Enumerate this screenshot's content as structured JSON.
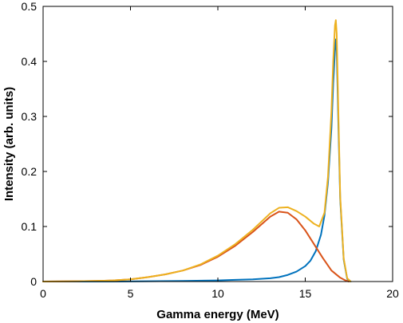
{
  "chart_data": {
    "type": "line",
    "title": "",
    "xlabel": "Gamma energy (MeV)",
    "ylabel": "Intensity (arb. units)",
    "xlim": [
      0,
      20
    ],
    "ylim": [
      0,
      0.5
    ],
    "x_ticks": [
      0,
      5,
      10,
      15,
      20
    ],
    "x_tick_labels": [
      "0",
      "5",
      "10",
      "15",
      "20"
    ],
    "y_ticks": [
      0,
      0.1,
      0.2,
      0.3,
      0.4,
      0.5
    ],
    "y_tick_labels": [
      "0",
      "0.1",
      "0.2",
      "0.3",
      "0.4",
      "0.5"
    ],
    "grid": false,
    "legend": "none",
    "series": [
      {
        "color": "#0072BD",
        "x": [
          0,
          2,
          4,
          6,
          8,
          10,
          11,
          12,
          13,
          13.5,
          14,
          14.5,
          15,
          15.3,
          15.6,
          15.9,
          16.1,
          16.3,
          16.5,
          16.6,
          16.7,
          16.75,
          16.8,
          16.9,
          17.0,
          17.2,
          17.4,
          17.6
        ],
        "y": [
          0,
          0,
          0,
          0.0005,
          0.001,
          0.002,
          0.003,
          0.004,
          0.006,
          0.008,
          0.012,
          0.018,
          0.028,
          0.038,
          0.055,
          0.085,
          0.12,
          0.18,
          0.28,
          0.36,
          0.42,
          0.44,
          0.42,
          0.28,
          0.15,
          0.04,
          0.005,
          0
        ]
      },
      {
        "color": "#D95319",
        "x": [
          0,
          2,
          3,
          4,
          5,
          6,
          7,
          8,
          9,
          10,
          11,
          12,
          13,
          13.5,
          14,
          14.5,
          15,
          15.5,
          16,
          16.5,
          17,
          17.3,
          17.5
        ],
        "y": [
          0,
          0.0005,
          0.001,
          0.002,
          0.004,
          0.008,
          0.013,
          0.02,
          0.03,
          0.045,
          0.065,
          0.09,
          0.118,
          0.127,
          0.125,
          0.113,
          0.093,
          0.068,
          0.043,
          0.02,
          0.007,
          0.002,
          0
        ]
      },
      {
        "color": "#EDB120",
        "x": [
          0,
          2,
          3,
          4,
          5,
          6,
          7,
          8,
          9,
          10,
          11,
          12,
          13,
          13.5,
          14,
          14.5,
          15,
          15.5,
          15.8,
          16.1,
          16.3,
          16.5,
          16.6,
          16.7,
          16.75,
          16.8,
          16.9,
          17.0,
          17.2,
          17.4,
          17.6
        ],
        "y": [
          0,
          0.0005,
          0.001,
          0.002,
          0.004,
          0.008,
          0.013,
          0.02,
          0.031,
          0.047,
          0.068,
          0.094,
          0.124,
          0.134,
          0.135,
          0.128,
          0.118,
          0.105,
          0.1,
          0.125,
          0.19,
          0.31,
          0.4,
          0.465,
          0.475,
          0.45,
          0.3,
          0.155,
          0.042,
          0.006,
          0
        ]
      }
    ]
  }
}
